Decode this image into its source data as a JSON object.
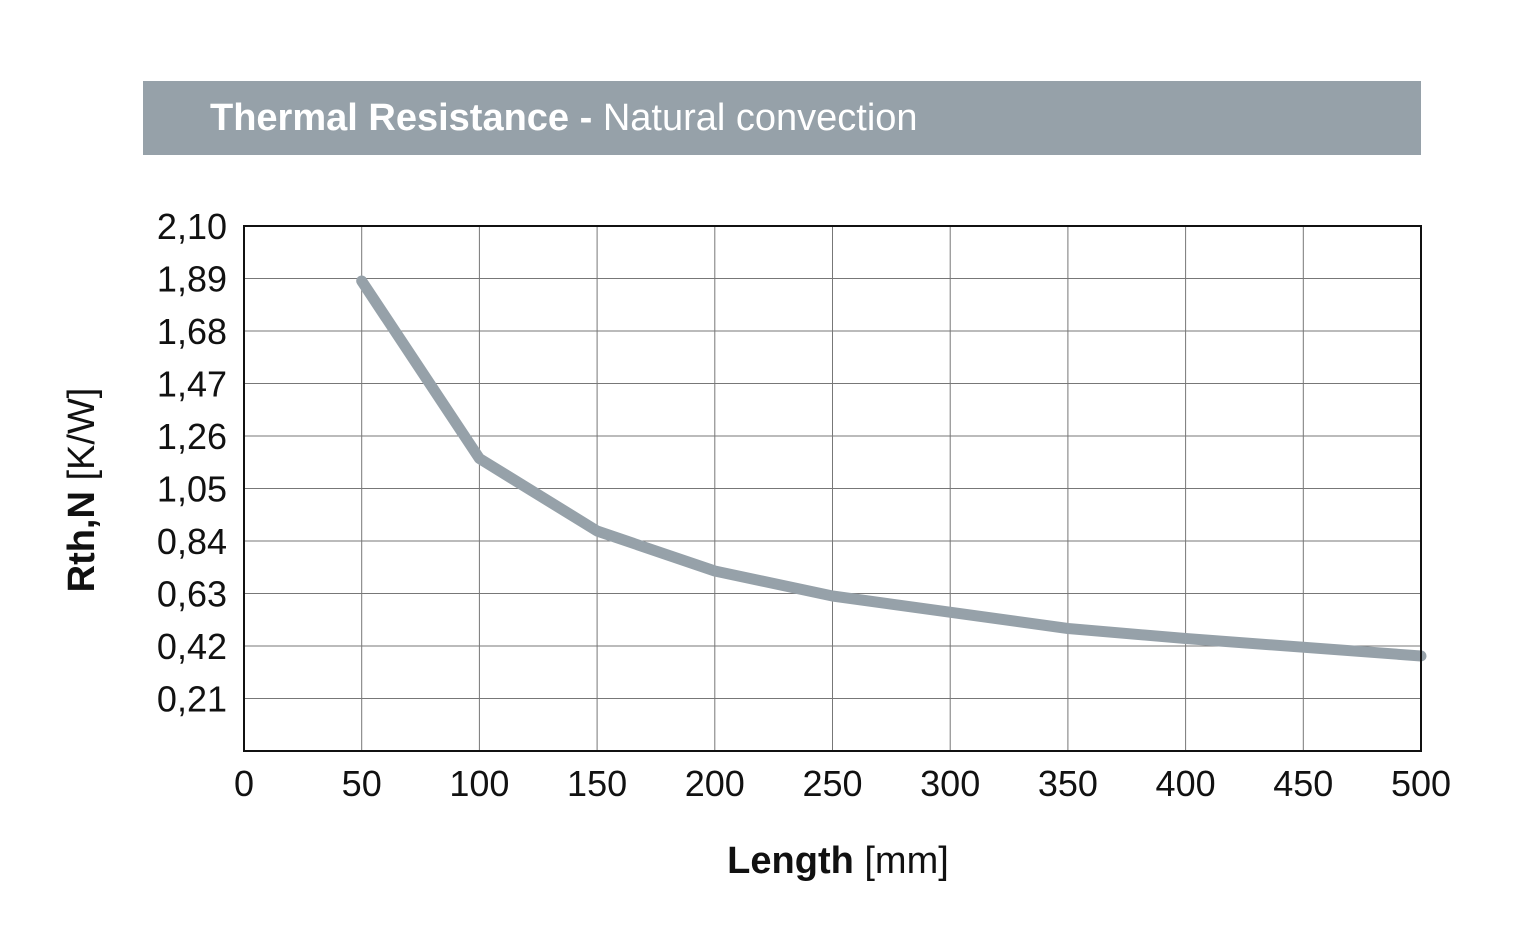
{
  "chart_data": {
    "type": "line",
    "title": "Thermal Resistance",
    "subtitle": "Natural convection",
    "title_separator": "-",
    "xlabel_bold": "Length",
    "xlabel_unit": "[mm]",
    "ylabel_bold": "Rth,N",
    "ylabel_unit": "[K/W]",
    "xlim": [
      0,
      500
    ],
    "ylim": [
      0,
      2.1
    ],
    "x_ticks": [
      "0",
      "50",
      "100",
      "150",
      "200",
      "250",
      "300",
      "350",
      "400",
      "450",
      "500"
    ],
    "y_ticks": [
      "0,21",
      "0,42",
      "0,63",
      "0,84",
      "1,05",
      "1,26",
      "1,47",
      "1,68",
      "1,89",
      "2,10"
    ],
    "grid": true,
    "series": [
      {
        "x": [
          50,
          100,
          150,
          200,
          250,
          350,
          400,
          500
        ],
        "y": [
          1.88,
          1.17,
          0.88,
          0.72,
          0.62,
          0.49,
          0.45,
          0.38
        ],
        "color": "#96a1a9"
      }
    ],
    "title_bar_color": "#96a1a9"
  }
}
